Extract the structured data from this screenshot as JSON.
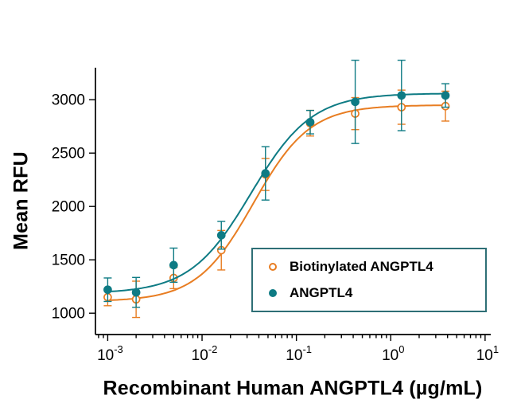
{
  "figure": {
    "background": "#ffffff"
  },
  "chart_data": {
    "type": "scatter",
    "title": "",
    "xlabel": "Recombinant Human ANGPTL4 (µg/mL)",
    "ylabel": "Mean RFU",
    "x_scale": "log",
    "xlim_exponents": [
      -3.13,
      1.06
    ],
    "ylim": [
      800,
      3300
    ],
    "y_ticks": [
      1000,
      1500,
      2000,
      2500,
      3000
    ],
    "x_major_tick_exponents": [
      -3,
      -2,
      -1,
      0,
      1
    ],
    "x_minor_ticks": true,
    "grid": false,
    "axis_color": "#000000",
    "legend": {
      "position": "inside-right-bottom",
      "border_color": "#2e6f76",
      "background": "#ffffff",
      "entries": [
        "Biotinylated ANGPTL4",
        "ANGPTL4"
      ]
    },
    "series": [
      {
        "name": "Biotinylated ANGPTL4",
        "color": "#E87D22",
        "marker": "open-circle",
        "line": "smooth-fit",
        "x": [
          0.001,
          0.002,
          0.005,
          0.016,
          0.047,
          0.14,
          0.42,
          1.3,
          3.8
        ],
        "y": [
          1150,
          1130,
          1330,
          1590,
          2300,
          2780,
          2870,
          2930,
          2940
        ],
        "y_err": [
          80,
          170,
          100,
          185,
          150,
          120,
          150,
          160,
          140
        ],
        "fit_4pl": {
          "bottom": 1110,
          "top": 2950,
          "ec50": 0.035,
          "hill": 1.45
        }
      },
      {
        "name": "ANGPTL4",
        "color": "#0E7B84",
        "marker": "filled-circle",
        "line": "smooth-fit",
        "x": [
          0.001,
          0.002,
          0.005,
          0.016,
          0.047,
          0.14,
          0.42,
          1.3,
          3.8
        ],
        "y": [
          1220,
          1195,
          1450,
          1730,
          2310,
          2790,
          2980,
          3040,
          3040
        ],
        "y_err": [
          110,
          140,
          160,
          130,
          250,
          110,
          390,
          330,
          110
        ],
        "fit_4pl": {
          "bottom": 1185,
          "top": 3060,
          "ec50": 0.033,
          "hill": 1.35
        }
      }
    ]
  }
}
